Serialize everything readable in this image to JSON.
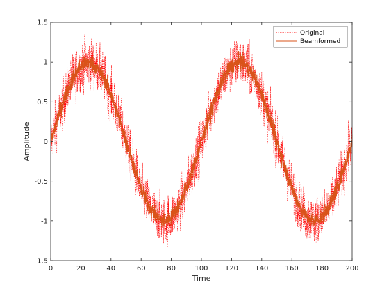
{
  "chart_data": {
    "type": "line",
    "title": "",
    "xlabel": "Time",
    "ylabel": "Amplitude",
    "xlim": [
      0,
      200
    ],
    "ylim": [
      -1.5,
      1.5
    ],
    "xticks": [
      0,
      20,
      40,
      60,
      80,
      100,
      120,
      140,
      160,
      180,
      200
    ],
    "yticks": [
      -1.5,
      -1,
      -0.5,
      0,
      0.5,
      1,
      1.5
    ],
    "xtick_labels": [
      "0",
      "20",
      "40",
      "60",
      "80",
      "100",
      "120",
      "140",
      "160",
      "180",
      "200"
    ],
    "ytick_labels": [
      "-1.5",
      "-1",
      "-0.5",
      "0",
      "0.5",
      "1",
      "1.5"
    ],
    "grid": false,
    "legend_position": "top-right",
    "series": [
      {
        "name": "Original",
        "style": "dotted",
        "color": "#ff0000",
        "x": [
          0,
          5,
          10,
          15,
          20,
          25,
          30,
          35,
          40,
          45,
          50,
          55,
          60,
          65,
          70,
          75,
          80,
          85,
          90,
          95,
          100,
          105,
          110,
          115,
          120,
          125,
          130,
          135,
          140,
          145,
          150,
          155,
          160,
          165,
          170,
          175,
          180,
          185,
          190,
          195,
          200
        ],
        "y": [
          0,
          0.31,
          0.59,
          0.81,
          0.95,
          1.0,
          0.95,
          0.81,
          0.59,
          0.31,
          0,
          -0.31,
          -0.59,
          -0.81,
          -0.95,
          -1.0,
          -0.95,
          -0.81,
          -0.59,
          -0.31,
          0,
          0.31,
          0.59,
          0.81,
          0.95,
          1.0,
          0.95,
          0.81,
          0.59,
          0.31,
          0,
          -0.31,
          -0.59,
          -0.81,
          -0.95,
          -1.0,
          -0.95,
          -0.81,
          -0.59,
          -0.31,
          0
        ],
        "noise_amplitude": 0.15
      },
      {
        "name": "Beamformed",
        "style": "solid",
        "color": "#d95319",
        "x": [
          0,
          5,
          10,
          15,
          20,
          25,
          30,
          35,
          40,
          45,
          50,
          55,
          60,
          65,
          70,
          75,
          80,
          85,
          90,
          95,
          100,
          105,
          110,
          115,
          120,
          125,
          130,
          135,
          140,
          145,
          150,
          155,
          160,
          165,
          170,
          175,
          180,
          185,
          190,
          195,
          200
        ],
        "y": [
          0,
          0.31,
          0.59,
          0.81,
          0.95,
          1.0,
          0.95,
          0.81,
          0.59,
          0.31,
          0,
          -0.31,
          -0.59,
          -0.81,
          -0.95,
          -1.0,
          -0.95,
          -0.81,
          -0.59,
          -0.31,
          0,
          0.31,
          0.59,
          0.81,
          0.95,
          1.0,
          0.95,
          0.81,
          0.59,
          0.31,
          0,
          -0.31,
          -0.59,
          -0.81,
          -0.95,
          -1.0,
          -0.95,
          -0.81,
          -0.59,
          -0.31,
          0
        ],
        "noise_amplitude": 0.05
      }
    ]
  }
}
